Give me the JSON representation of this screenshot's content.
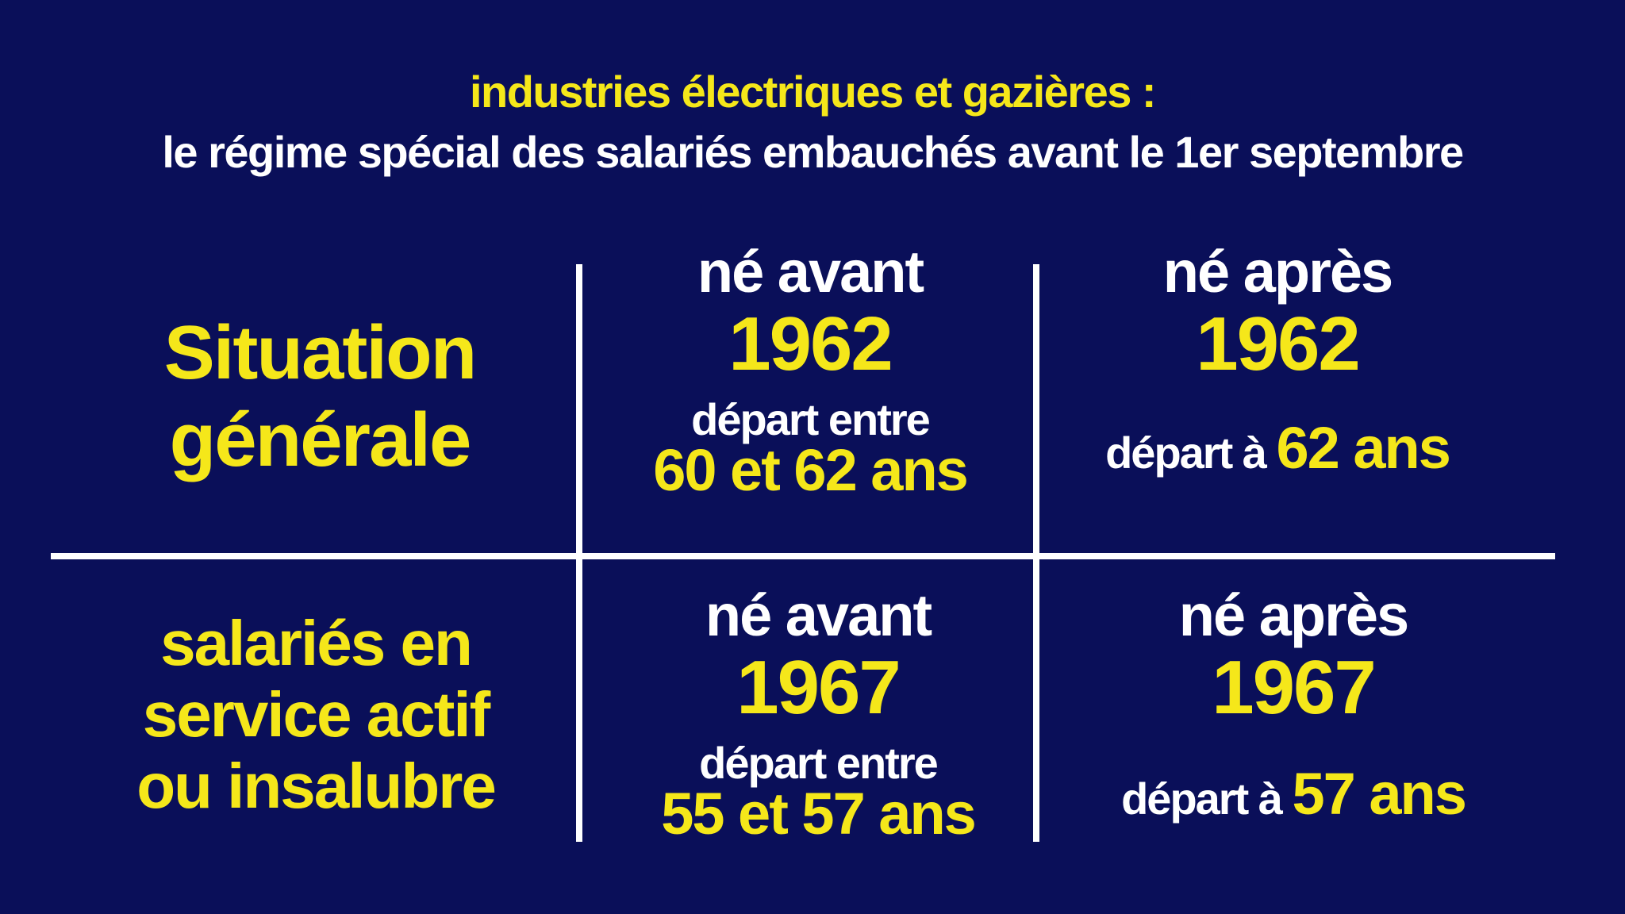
{
  "header": {
    "line1": "industries électriques et gazières :",
    "line2": "le régime spécial des salariés embauchés avant le 1er septembre"
  },
  "rows": [
    {
      "label_line1": "Situation",
      "label_line2": "générale",
      "before": {
        "ne": "né avant",
        "year": "1962",
        "depart_line1": "départ entre",
        "depart_line2": "60 et 62 ans"
      },
      "after": {
        "ne": "né après",
        "year": "1962",
        "depart_prefix": "départ à",
        "depart_value": "62 ans"
      }
    },
    {
      "label_line1": "salariés en",
      "label_line2": "service actif",
      "label_line3": "ou insalubre",
      "before": {
        "ne": "né avant",
        "year": "1967",
        "depart_line1": "départ entre",
        "depart_line2": "55 et 57 ans"
      },
      "after": {
        "ne": "né après",
        "year": "1967",
        "depart_prefix": "départ à",
        "depart_value": "57 ans"
      }
    }
  ],
  "colors": {
    "background": "#0a0f59",
    "accent": "#f5e71a",
    "text": "#ffffff"
  }
}
